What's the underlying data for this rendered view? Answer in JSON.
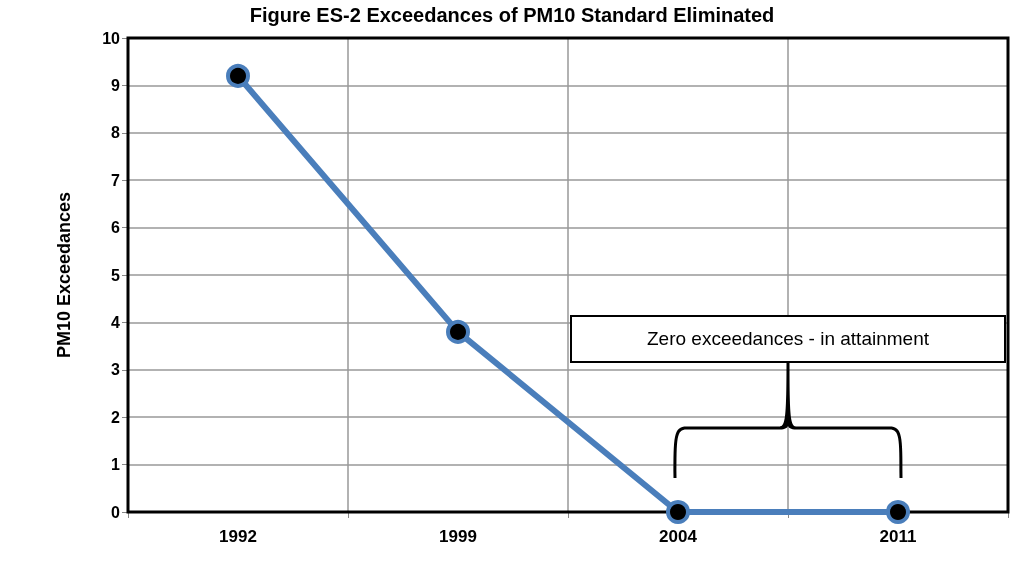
{
  "chart_data": {
    "type": "line",
    "title": "Figure ES-2 Exceedances of PM10 Standard Eliminated",
    "ylabel": "PM10 Exceedances",
    "categories": [
      "1992",
      "1999",
      "2004",
      "2011"
    ],
    "series": [
      {
        "color": "#4a7ebb",
        "values": [
          9.2,
          3.8,
          0,
          0
        ]
      }
    ],
    "ylim": [
      0,
      10
    ],
    "yticks": [
      0,
      1,
      2,
      3,
      4,
      5,
      6,
      7,
      8,
      9,
      10
    ],
    "grid": true,
    "marker": "circle",
    "line_style": "solid",
    "annotations": [
      "Zero exceedances - in attainment"
    ]
  }
}
